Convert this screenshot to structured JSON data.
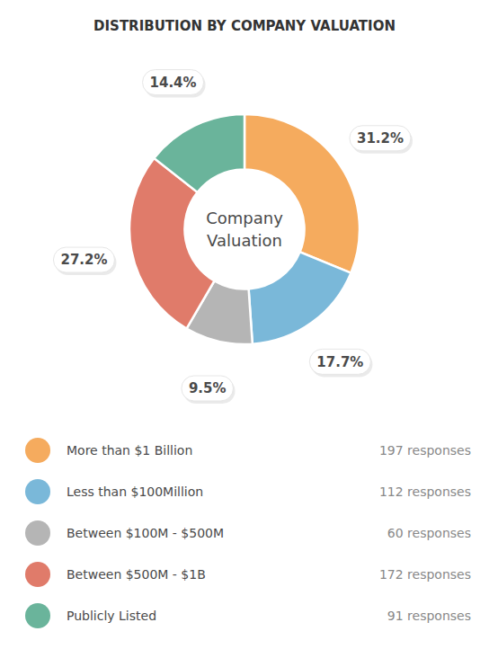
{
  "chart_data": {
    "type": "pie",
    "title": "DISTRIBUTION BY COMPANY VALUATION",
    "annotations": [
      "Company\nValuation"
    ],
    "categories": [
      "More than $1 Billion",
      "Less than $100Million",
      "Between $100M - $500M",
      "Between $500M - $1B",
      "Publicly Listed"
    ],
    "values": [
      31.2,
      17.7,
      9.5,
      27.2,
      14.4
    ],
    "value_labels": [
      "31.2%",
      "17.7%",
      "9.5%",
      "27.2%",
      "14.4%"
    ],
    "responses": [
      "197 responses",
      "112 responses",
      "60 responses",
      "172 responses",
      "91 responses"
    ],
    "colors": [
      "#f5ab5e",
      "#7ab8d9",
      "#b5b5b5",
      "#e07b6a",
      "#6ab49b"
    ],
    "data_labels": true,
    "legend": "bottom"
  }
}
